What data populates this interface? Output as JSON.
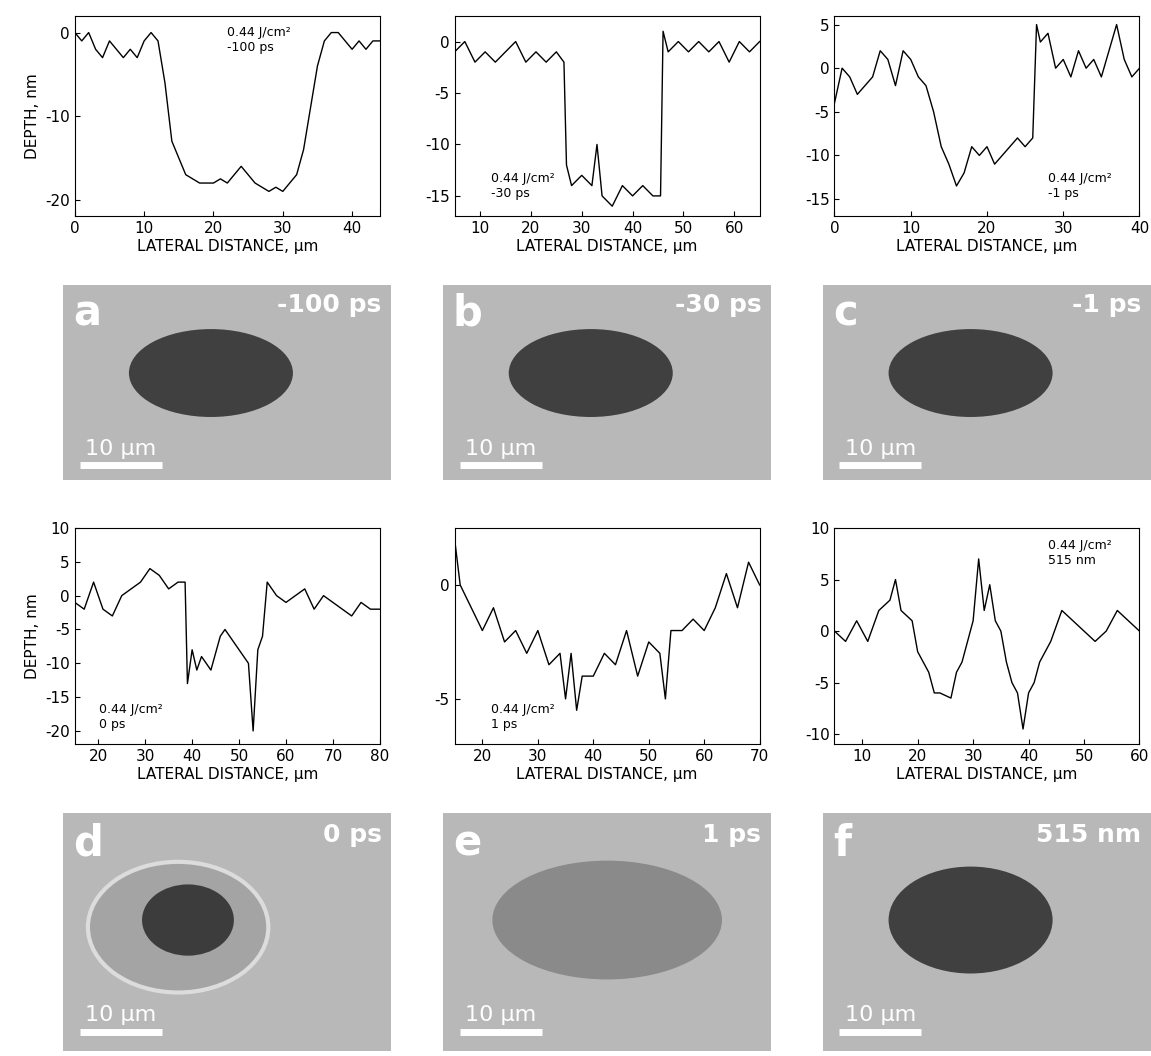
{
  "chart_data": [
    {
      "type": "line",
      "color": "#000000",
      "x_label": "LATERAL DISTANCE, μm",
      "y_label": "DEPTH, nm",
      "annotation": [
        "0.44 J/cm²",
        "-100 ps"
      ],
      "x": [
        0,
        1,
        2,
        3,
        4,
        5,
        6,
        7,
        8,
        9,
        10,
        11,
        12,
        13,
        14,
        15,
        16,
        17,
        18,
        19,
        20,
        21,
        22,
        23,
        24,
        25,
        26,
        27,
        28,
        29,
        30,
        31,
        32,
        33,
        34,
        35,
        36,
        37,
        38,
        39,
        40,
        41,
        42,
        43,
        44
      ],
      "values": [
        0,
        -1,
        0,
        -2,
        -3,
        -1,
        -2,
        -3,
        -2,
        -3,
        -1,
        0,
        -1,
        -6,
        -13,
        -15,
        -17,
        -17.5,
        -18,
        -18,
        -18,
        -17.5,
        -18,
        -17,
        -16,
        -17,
        -18,
        -18.5,
        -19,
        -18.5,
        -19,
        -18,
        -17,
        -14,
        -9,
        -4,
        -1,
        0,
        0,
        -1,
        -2,
        -1,
        -2,
        -1,
        -1
      ],
      "xlim": [
        0,
        44
      ],
      "ylim": [
        -22,
        2
      ],
      "xticks": [
        0,
        10,
        20,
        30,
        40
      ],
      "yticks": [
        -20,
        -10,
        0
      ]
    },
    {
      "type": "line",
      "color": "#000000",
      "x_label": "LATERAL DISTANCE, μm",
      "annotation": [
        "0.44 J/cm²",
        "-30 ps"
      ],
      "x": [
        5,
        7,
        9,
        11,
        13,
        15,
        17,
        19,
        21,
        23,
        25,
        26.5,
        27,
        28,
        30,
        32,
        33,
        34,
        36,
        38,
        40,
        42,
        44,
        45.5,
        46,
        47,
        49,
        51,
        53,
        55,
        57,
        59,
        61,
        63,
        65
      ],
      "values": [
        -1,
        0,
        -2,
        -1,
        -2,
        -1,
        0,
        -2,
        -1,
        -2,
        -1,
        -2,
        -12,
        -14,
        -13,
        -14,
        -10,
        -15,
        -16,
        -14,
        -15,
        -14,
        -15,
        -15,
        1,
        -1,
        0,
        -1,
        0,
        -1,
        0,
        -2,
        0,
        -1,
        0
      ],
      "xlim": [
        5,
        65
      ],
      "ylim": [
        -17,
        2.5
      ],
      "xticks": [
        10,
        20,
        30,
        40,
        50,
        60
      ],
      "yticks": [
        -15,
        -10,
        -5,
        0
      ]
    },
    {
      "type": "line",
      "color": "#000000",
      "x_label": "LATERAL DISTANCE, μm",
      "annotation": [
        "0.44 J/cm²",
        "-1 ps"
      ],
      "x": [
        0,
        1,
        2,
        3,
        4,
        5,
        6,
        7,
        8,
        9,
        10,
        11,
        12,
        13,
        14,
        15,
        16,
        17,
        18,
        19,
        20,
        21,
        22,
        23,
        24,
        25,
        26,
        26.5,
        27,
        28,
        29,
        30,
        31,
        32,
        33,
        34,
        35,
        36,
        37,
        38,
        39,
        40
      ],
      "values": [
        -4,
        0,
        -1,
        -3,
        -2,
        -1,
        2,
        1,
        -2,
        2,
        1,
        -1,
        -2,
        -5,
        -9,
        -11,
        -13.5,
        -12,
        -9,
        -10,
        -9,
        -11,
        -10,
        -9,
        -8,
        -9,
        -8,
        5,
        3,
        4,
        0,
        1,
        -1,
        2,
        0,
        1,
        -1,
        2,
        5,
        1,
        -1,
        0
      ],
      "xlim": [
        0,
        40
      ],
      "ylim": [
        -17,
        6
      ],
      "xticks": [
        0,
        10,
        20,
        30,
        40
      ],
      "yticks": [
        -15,
        -10,
        -5,
        0,
        5
      ]
    },
    {
      "type": "line",
      "color": "#000000",
      "x_label": "LATERAL DISTANCE, μm",
      "y_label": "DEPTH, nm",
      "annotation": [
        "0.44 J/cm²",
        "0 ps"
      ],
      "x": [
        15,
        17,
        19,
        21,
        23,
        25,
        27,
        29,
        31,
        33,
        35,
        37,
        38.5,
        39,
        40,
        41,
        42,
        44,
        46,
        47,
        49,
        51,
        52,
        53,
        54,
        55,
        56,
        58,
        60,
        62,
        64,
        66,
        68,
        70,
        72,
        74,
        76,
        78,
        80
      ],
      "values": [
        -1,
        -2,
        2,
        -2,
        -3,
        0,
        1,
        2,
        4,
        3,
        1,
        2,
        2,
        -13,
        -8,
        -11,
        -9,
        -11,
        -6,
        -5,
        -7,
        -9,
        -10,
        -20,
        -8,
        -6,
        2,
        0,
        -1,
        0,
        1,
        -2,
        0,
        -1,
        -2,
        -3,
        -1,
        -2,
        -2
      ],
      "xlim": [
        15,
        80
      ],
      "ylim": [
        -22,
        10
      ],
      "xticks": [
        20,
        30,
        40,
        50,
        60,
        70,
        80
      ],
      "yticks": [
        -20,
        -15,
        -10,
        -5,
        0,
        5,
        10
      ]
    },
    {
      "type": "line",
      "color": "#000000",
      "x_label": "LATERAL DISTANCE, μm",
      "annotation": [
        "0.44 J/cm²",
        "1 ps"
      ],
      "x": [
        15,
        16,
        18,
        20,
        22,
        24,
        26,
        28,
        30,
        32,
        34,
        35,
        36,
        37,
        38,
        40,
        42,
        44,
        46,
        48,
        50,
        52,
        53,
        54,
        56,
        58,
        60,
        62,
        64,
        66,
        68,
        70
      ],
      "values": [
        2,
        0,
        -1,
        -2,
        -1,
        -2.5,
        -2,
        -3,
        -2,
        -3.5,
        -3,
        -5,
        -3,
        -5.5,
        -4,
        -4,
        -3,
        -3.5,
        -2,
        -4,
        -2.5,
        -3,
        -5,
        -2,
        -2,
        -1.5,
        -2,
        -1,
        0.5,
        -1,
        1,
        0
      ],
      "xlim": [
        15,
        70
      ],
      "ylim": [
        -7,
        2.5
      ],
      "xticks": [
        20,
        30,
        40,
        50,
        60,
        70
      ],
      "yticks": [
        -5,
        0
      ]
    },
    {
      "type": "line",
      "color": "#000000",
      "x_label": "LATERAL DISTANCE, μm",
      "annotation": [
        "0.44 J/cm²",
        "515 nm"
      ],
      "x": [
        5,
        7,
        9,
        11,
        13,
        15,
        16,
        17,
        19,
        20,
        22,
        23,
        24,
        26,
        27,
        28,
        29,
        30,
        31,
        32,
        33,
        34,
        35,
        36,
        37,
        38,
        39,
        40,
        41,
        42,
        44,
        46,
        48,
        50,
        52,
        54,
        56,
        58,
        60
      ],
      "values": [
        0,
        -1,
        1,
        -1,
        2,
        3,
        5,
        2,
        1,
        -2,
        -4,
        -6,
        -6,
        -6.5,
        -4,
        -3,
        -1,
        1,
        7,
        2,
        4.5,
        1,
        0,
        -3,
        -5,
        -6,
        -9.5,
        -6,
        -5,
        -3,
        -1,
        2,
        1,
        0,
        -1,
        0,
        2,
        1,
        0
      ],
      "xlim": [
        5,
        60
      ],
      "ylim": [
        -11,
        10
      ],
      "xticks": [
        10,
        20,
        30,
        40,
        50,
        60
      ],
      "yticks": [
        -10,
        -5,
        0,
        5,
        10
      ]
    }
  ],
  "images": [
    {
      "letter": "a",
      "label": "-100 ps",
      "scale_bar": "10 μm"
    },
    {
      "letter": "b",
      "label": "-30 ps",
      "scale_bar": "10 μm"
    },
    {
      "letter": "c",
      "label": "-1 ps",
      "scale_bar": "10 μm"
    },
    {
      "letter": "d",
      "label": "0 ps",
      "scale_bar": "10 μm"
    },
    {
      "letter": "e",
      "label": "1 ps",
      "scale_bar": "10 μm"
    },
    {
      "letter": "f",
      "label": "515 nm",
      "scale_bar": "10 μm"
    }
  ]
}
